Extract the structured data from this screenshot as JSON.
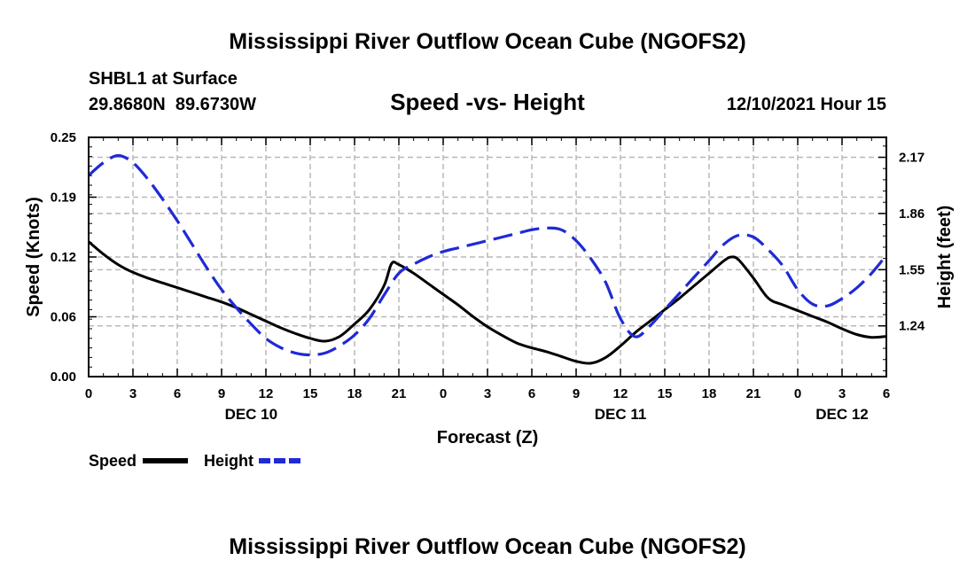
{
  "page_title": "Mississippi River Outflow Ocean Cube (NGOFS2)",
  "bottom_title": "Mississippi River Outflow Ocean Cube (NGOFS2)",
  "station": {
    "name_line": "SHBL1 at Surface",
    "coords_line": "29.8680N  89.6730W"
  },
  "chart_title": "Speed -vs- Height",
  "datetime_label": "12/10/2021 Hour 15",
  "colors": {
    "speed": "#000000",
    "height": "#1f2ad6",
    "grid": "#b8b8b8"
  },
  "chart_data": {
    "type": "line",
    "title": "Speed -vs- Height",
    "xlabel": "Forecast (Z)",
    "ylabel_left": "Speed (Knots)",
    "ylabel_right": "Height (feet)",
    "x_range_hours": [
      0,
      54
    ],
    "x_tick_step_hours": 3,
    "x_tick_labels": [
      "0",
      "3",
      "6",
      "9",
      "12",
      "15",
      "18",
      "21",
      "0",
      "3",
      "6",
      "9",
      "12",
      "15",
      "18",
      "21",
      "0",
      "3",
      "6"
    ],
    "day_labels": [
      {
        "hour": 11,
        "label": "DEC 10"
      },
      {
        "hour": 36,
        "label": "DEC 11"
      },
      {
        "hour": 51,
        "label": "DEC 12"
      }
    ],
    "ylim_left": [
      0,
      0.25
    ],
    "yticks_left": [
      "0.00",
      "0.06",
      "0.12",
      "0.19",
      "0.25"
    ],
    "ylim_right": [
      0.96,
      2.28
    ],
    "yticks_right": [
      {
        "value": 1.24,
        "label": "1.24"
      },
      {
        "value": 1.55,
        "label": "1.55"
      },
      {
        "value": 1.86,
        "label": "1.86"
      },
      {
        "value": 2.17,
        "label": "2.17"
      }
    ],
    "grid": true,
    "series": [
      {
        "name": "Speed",
        "axis": "left",
        "style": "solid",
        "x": [
          0,
          1,
          2,
          3,
          4,
          5,
          6,
          7,
          8,
          9,
          10,
          11,
          12,
          13,
          14,
          15,
          16,
          17,
          18,
          19,
          20,
          20.5,
          21,
          22,
          23,
          24,
          25,
          26,
          27,
          28,
          29,
          30,
          31,
          32,
          33,
          34,
          35,
          36,
          37,
          38,
          39,
          40,
          41,
          42,
          43,
          43.5,
          44,
          45,
          46,
          47,
          48,
          49,
          50,
          51,
          52,
          53,
          54
        ],
        "values": [
          0.141,
          0.128,
          0.117,
          0.109,
          0.103,
          0.098,
          0.093,
          0.088,
          0.083,
          0.078,
          0.072,
          0.065,
          0.058,
          0.051,
          0.045,
          0.04,
          0.037,
          0.042,
          0.055,
          0.07,
          0.095,
          0.118,
          0.117,
          0.108,
          0.097,
          0.086,
          0.075,
          0.063,
          0.052,
          0.043,
          0.035,
          0.03,
          0.026,
          0.021,
          0.016,
          0.014,
          0.02,
          0.032,
          0.046,
          0.058,
          0.07,
          0.082,
          0.095,
          0.108,
          0.121,
          0.125,
          0.122,
          0.103,
          0.082,
          0.075,
          0.069,
          0.063,
          0.057,
          0.05,
          0.044,
          0.041,
          0.042
        ]
      },
      {
        "name": "Height",
        "axis": "right",
        "style": "dashed",
        "x": [
          0,
          1,
          2,
          3,
          4,
          5,
          6,
          7,
          8,
          9,
          10,
          11,
          12,
          13,
          14,
          15,
          16,
          17,
          18,
          19,
          20,
          21,
          22,
          23,
          24,
          25,
          26,
          27,
          28,
          29,
          30,
          31,
          32,
          33,
          34,
          35,
          36,
          37,
          38,
          39,
          40,
          41,
          42,
          43,
          44,
          45,
          46,
          47,
          48,
          49,
          50,
          51,
          52,
          53,
          54
        ],
        "values": [
          2.07,
          2.14,
          2.18,
          2.14,
          2.05,
          1.94,
          1.82,
          1.69,
          1.56,
          1.44,
          1.34,
          1.25,
          1.17,
          1.12,
          1.09,
          1.08,
          1.09,
          1.13,
          1.19,
          1.28,
          1.41,
          1.53,
          1.58,
          1.62,
          1.65,
          1.67,
          1.69,
          1.71,
          1.73,
          1.75,
          1.77,
          1.78,
          1.77,
          1.71,
          1.61,
          1.48,
          1.28,
          1.18,
          1.24,
          1.33,
          1.42,
          1.51,
          1.6,
          1.69,
          1.74,
          1.73,
          1.66,
          1.57,
          1.44,
          1.36,
          1.35,
          1.39,
          1.45,
          1.53,
          1.63
        ]
      }
    ]
  },
  "legend": {
    "speed_label": "Speed",
    "height_label": "Height"
  }
}
